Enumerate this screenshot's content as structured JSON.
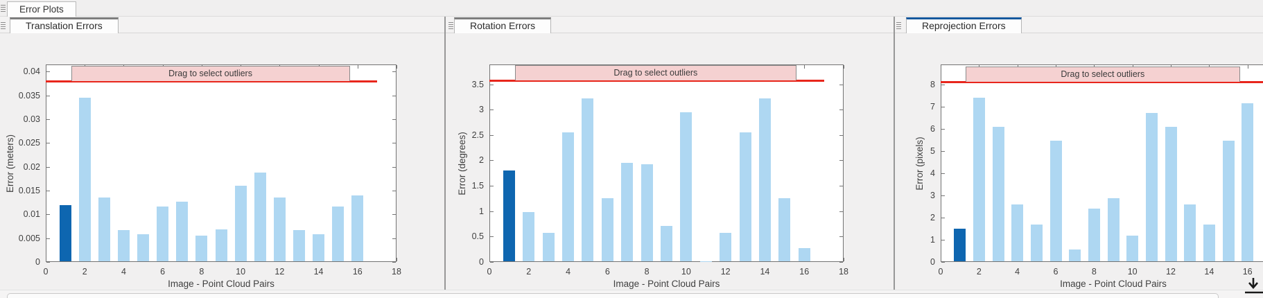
{
  "window": {
    "doc_tab_label": "Error Plots"
  },
  "colors": {
    "bar": "#aed7f2",
    "bar_highlight": "#0e66b0",
    "threshold_line": "#e8261c",
    "band_fill": "#f5d1d1",
    "band_border": "#8a8a8a",
    "tab_accent_unfocused": "#7d7d7d",
    "tab_accent_focused": "#15589c"
  },
  "icons": {
    "tab_grip": "drag-grip-icon",
    "bottom_corner": "dock-down-arrow-icon"
  },
  "panels": [
    {
      "tab_label": "Translation Errors",
      "focused": false
    },
    {
      "tab_label": "Rotation Errors",
      "focused": false
    },
    {
      "tab_label": "Reprojection Errors",
      "focused": true
    }
  ],
  "chart_data": [
    {
      "type": "bar",
      "title": "Translation Errors",
      "xlabel": "Image - Point Cloud Pairs",
      "ylabel": "Error (meters)",
      "x": [
        1,
        2,
        3,
        4,
        5,
        6,
        7,
        8,
        9,
        10,
        11,
        12,
        13,
        14,
        15,
        16
      ],
      "values": [
        0.012,
        0.0345,
        0.0135,
        0.0067,
        0.0058,
        0.0117,
        0.0127,
        0.0056,
        0.0068,
        0.016,
        0.0188,
        0.0135,
        0.0067,
        0.0058,
        0.0117,
        0.014
      ],
      "highlighted_x": 1,
      "xlim": [
        0,
        18
      ],
      "ylim": [
        0,
        0.0415
      ],
      "xticks": [
        0,
        2,
        4,
        6,
        8,
        10,
        12,
        14,
        16,
        18
      ],
      "yticks": [
        0,
        0.005,
        0.01,
        0.015,
        0.02,
        0.025,
        0.03,
        0.035,
        0.04
      ],
      "ytick_labels": [
        "0",
        "0.005",
        "0.01",
        "0.015",
        "0.02",
        "0.025",
        "0.03",
        "0.035",
        "0.04"
      ],
      "threshold": 0.038,
      "threshold_x_range": [
        0,
        17
      ],
      "band_label": "Drag to select outliers",
      "band_x_range": [
        1.3,
        15.6
      ],
      "grid": false,
      "legend": null
    },
    {
      "type": "bar",
      "title": "Rotation Errors",
      "xlabel": "Image - Point Cloud Pairs",
      "ylabel": "Error (degrees)",
      "x": [
        1,
        2,
        3,
        4,
        5,
        6,
        7,
        8,
        9,
        10,
        11,
        12,
        13,
        14,
        15,
        16
      ],
      "values": [
        1.8,
        0.98,
        0.57,
        2.55,
        3.22,
        1.25,
        1.95,
        1.92,
        0.71,
        2.95,
        0.02,
        0.57,
        2.55,
        3.22,
        1.25,
        0.27
      ],
      "highlighted_x": 1,
      "xlim": [
        0,
        18
      ],
      "ylim": [
        0,
        3.89
      ],
      "xticks": [
        0,
        2,
        4,
        6,
        8,
        10,
        12,
        14,
        16,
        18
      ],
      "yticks": [
        0,
        0.5,
        1,
        1.5,
        2,
        2.5,
        3,
        3.5
      ],
      "ytick_labels": [
        "0",
        "0.5",
        "1",
        "1.5",
        "2",
        "2.5",
        "3",
        "3.5"
      ],
      "threshold": 3.57,
      "threshold_x_range": [
        0,
        17
      ],
      "band_label": "Drag to select outliers",
      "band_x_range": [
        1.3,
        15.6
      ],
      "grid": false,
      "legend": null
    },
    {
      "type": "bar",
      "title": "Reprojection Errors",
      "xlabel": "Image - Point Cloud Pairs",
      "ylabel": "Error (pixels)",
      "x": [
        1,
        2,
        3,
        4,
        5,
        6,
        7,
        8,
        9,
        10,
        11,
        12,
        13,
        14,
        15,
        16
      ],
      "values": [
        1.5,
        7.4,
        6.1,
        2.58,
        1.7,
        5.45,
        0.56,
        2.39,
        2.86,
        1.2,
        6.7,
        6.1,
        2.58,
        1.7,
        5.45,
        7.15
      ],
      "highlighted_x": 1,
      "xlim": [
        0,
        18
      ],
      "ylim": [
        0,
        8.9
      ],
      "xticks": [
        0,
        2,
        4,
        6,
        8,
        10,
        12,
        14,
        16,
        18
      ],
      "yticks": [
        0,
        1,
        2,
        3,
        4,
        5,
        6,
        7,
        8
      ],
      "ytick_labels": [
        "0",
        "1",
        "2",
        "3",
        "4",
        "5",
        "6",
        "7",
        "8"
      ],
      "threshold": 8.13,
      "threshold_x_range": [
        0,
        17
      ],
      "band_label": "Drag to select outliers",
      "band_x_range": [
        1.3,
        15.6
      ],
      "grid": false,
      "legend": null
    }
  ]
}
